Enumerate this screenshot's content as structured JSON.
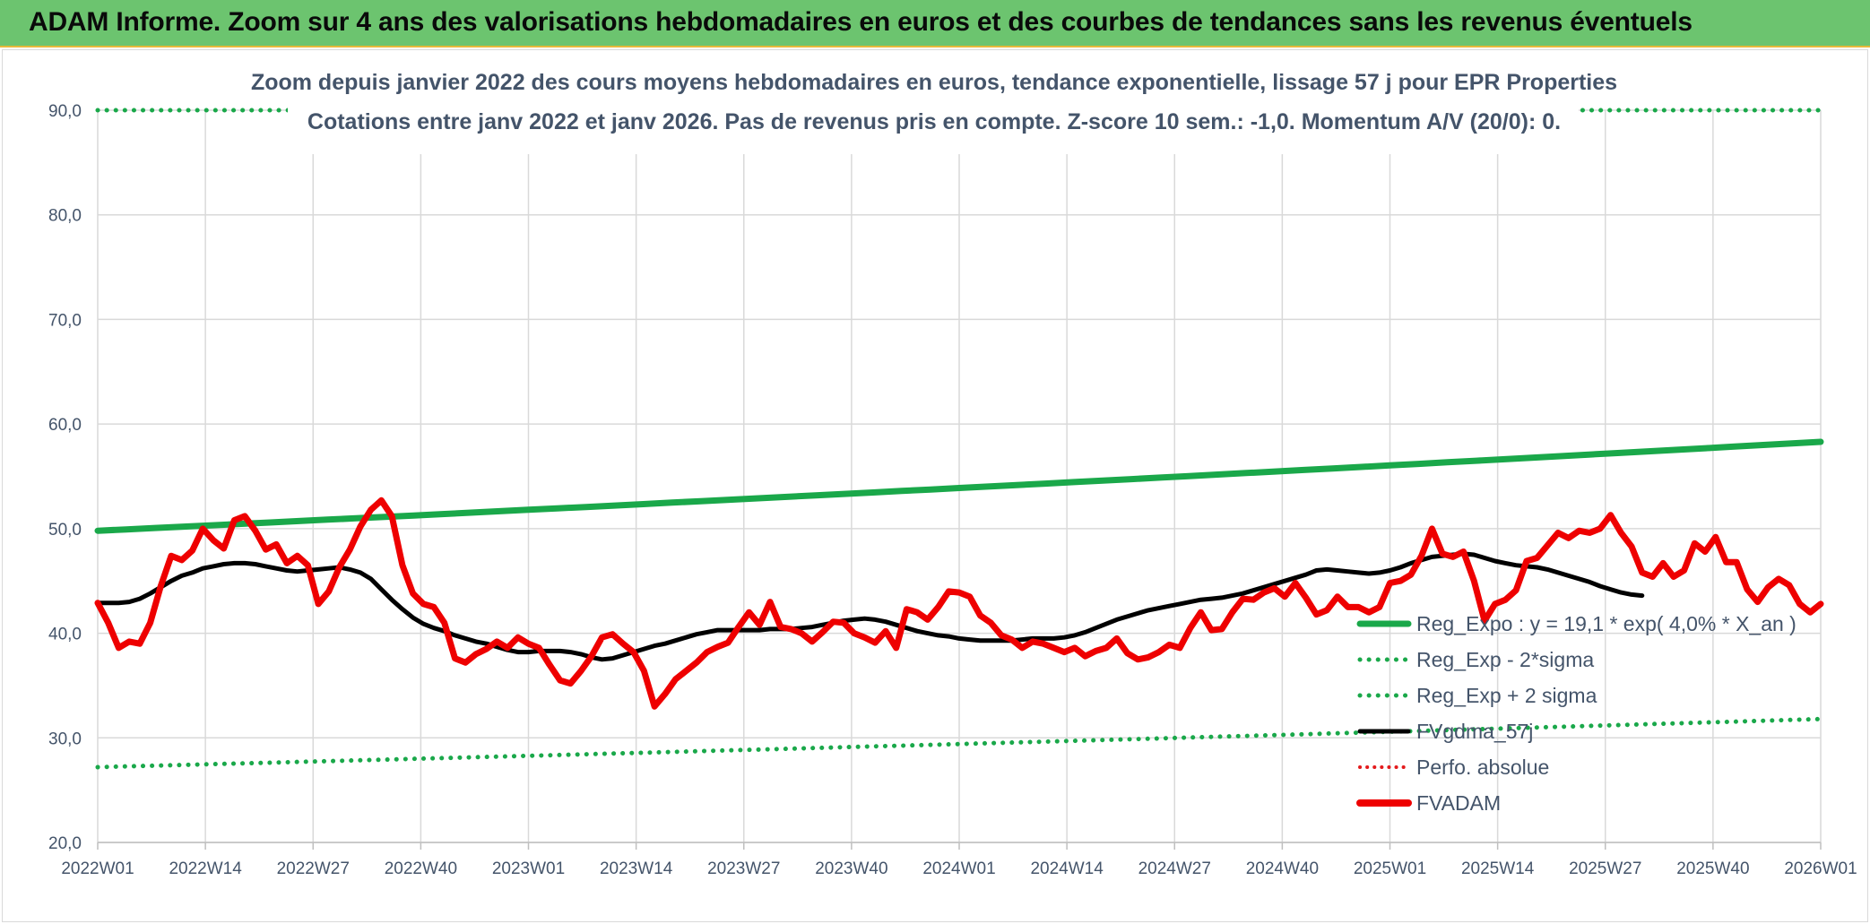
{
  "header": {
    "title": "ADAM Informe. Zoom sur 4 ans des valorisations hebdomadaires en euros et des courbes de tendances sans les revenus éventuels"
  },
  "chart_data": {
    "type": "line",
    "title_line1": "Zoom depuis janvier 2022 des cours moyens hebdomadaires en euros, tendance exponentielle, lissage 57 j pour EPR Properties",
    "title_line2": "Cotations entre janv 2022 et janv 2026. Pas de revenus pris en compte. Z-score 10 sem.: -1,0. Momentum A/V (20/0): 0.",
    "ylim": [
      20,
      90
    ],
    "y_ticks": [
      "20,0",
      "30,0",
      "40,0",
      "50,0",
      "60,0",
      "70,0",
      "80,0",
      "90,0"
    ],
    "x_ticks": [
      "2022W01",
      "2022W14",
      "2022W27",
      "2022W40",
      "2023W01",
      "2023W14",
      "2023W27",
      "2023W40",
      "2024W01",
      "2024W14",
      "2024W27",
      "2024W40",
      "2025W01",
      "2025W14",
      "2025W27",
      "2025W40",
      "2026W01"
    ],
    "grid": true,
    "legend_position": "right",
    "colors": {
      "reg_expo": "#1aa84a",
      "reg_sigma": "#1aa84a",
      "fvgdma": "#000000",
      "perfo": "#e31a1c",
      "fvadam": "#ee0000"
    },
    "series": [
      {
        "name": "Reg_Expo : y = 19,1 * exp( 4,0% *  X_an )",
        "style": "solid",
        "x_start": "2022W01",
        "x_end": "2026W01",
        "y_start": 49.8,
        "y_end": 58.3
      },
      {
        "name": "Reg_Exp - 2*sigma",
        "style": "dotted",
        "x_start": "2022W01",
        "x_end": "2026W01",
        "y_start": 27.2,
        "y_end": 31.8
      },
      {
        "name": "Reg_Exp + 2 sigma",
        "style": "dotted",
        "x_start": "2022W01",
        "x_end": "2026W01",
        "y_start": 90.0,
        "y_end": 90.0
      },
      {
        "name": "FVgdma_57j",
        "style": "solid",
        "values": [
          42.9,
          42.9,
          42.9,
          43.0,
          43.3,
          43.8,
          44.4,
          45.0,
          45.5,
          45.8,
          46.2,
          46.4,
          46.6,
          46.7,
          46.7,
          46.6,
          46.4,
          46.2,
          46.0,
          45.9,
          46.0,
          46.1,
          46.2,
          46.3,
          46.1,
          45.8,
          45.2,
          44.2,
          43.2,
          42.3,
          41.5,
          40.9,
          40.5,
          40.2,
          39.8,
          39.5,
          39.2,
          39.0,
          38.7,
          38.4,
          38.2,
          38.2,
          38.3,
          38.3,
          38.3,
          38.2,
          38.0,
          37.7,
          37.5,
          37.6,
          37.9,
          38.2,
          38.5,
          38.8,
          39.0,
          39.3,
          39.6,
          39.9,
          40.1,
          40.3,
          40.3,
          40.3,
          40.3,
          40.3,
          40.4,
          40.4,
          40.4,
          40.5,
          40.6,
          40.8,
          41.0,
          41.2,
          41.3,
          41.4,
          41.3,
          41.1,
          40.8,
          40.5,
          40.2,
          40.0,
          39.8,
          39.7,
          39.5,
          39.4,
          39.3,
          39.3,
          39.3,
          39.3,
          39.4,
          39.5,
          39.5,
          39.5,
          39.6,
          39.8,
          40.1,
          40.5,
          40.9,
          41.3,
          41.6,
          41.9,
          42.2,
          42.4,
          42.6,
          42.8,
          43.0,
          43.2,
          43.3,
          43.4,
          43.6,
          43.8,
          44.1,
          44.4,
          44.7,
          45.0,
          45.3,
          45.6,
          46.0,
          46.1,
          46.0,
          45.9,
          45.8,
          45.7,
          45.8,
          46.0,
          46.3,
          46.7,
          47.0,
          47.3,
          47.4,
          47.5,
          47.6,
          47.5,
          47.2,
          46.9,
          46.7,
          46.5,
          46.4,
          46.3,
          46.1,
          45.8,
          45.5,
          45.2,
          44.9,
          44.5,
          44.2,
          43.9,
          43.7,
          43.6
        ]
      },
      {
        "name": "Perfo. absolue",
        "style": "dotted",
        "values": []
      },
      {
        "name": "FVADAM",
        "style": "solid",
        "values": [
          42.9,
          41.0,
          38.6,
          39.2,
          39.0,
          41.0,
          44.5,
          47.4,
          47.0,
          47.9,
          50.0,
          48.9,
          48.1,
          50.8,
          51.2,
          49.8,
          48.0,
          48.5,
          46.7,
          47.4,
          46.5,
          42.8,
          44.0,
          46.3,
          48.0,
          50.2,
          51.8,
          52.7,
          51.2,
          46.5,
          43.8,
          42.8,
          42.5,
          41.0,
          37.6,
          37.2,
          38.0,
          38.5,
          39.2,
          38.6,
          39.6,
          39.0,
          38.6,
          37.0,
          35.5,
          35.2,
          36.4,
          37.8,
          39.6,
          39.9,
          39.0,
          38.2,
          36.4,
          33.0,
          34.2,
          35.6,
          36.4,
          37.2,
          38.2,
          38.7,
          39.1,
          40.6,
          42.0,
          40.8,
          43.0,
          40.6,
          40.4,
          40.0,
          39.2,
          40.1,
          41.1,
          41.0,
          40.0,
          39.6,
          39.1,
          40.2,
          38.6,
          42.3,
          42.0,
          41.3,
          42.5,
          44.0,
          43.9,
          43.5,
          41.7,
          41.0,
          39.8,
          39.4,
          38.6,
          39.2,
          39.0,
          38.6,
          38.2,
          38.6,
          37.8,
          38.3,
          38.6,
          39.5,
          38.1,
          37.5,
          37.7,
          38.2,
          38.9,
          38.6,
          40.5,
          42.0,
          40.3,
          40.4,
          42.0,
          43.3,
          43.2,
          43.9,
          44.3,
          43.5,
          44.8,
          43.4,
          41.8,
          42.2,
          43.5,
          42.5,
          42.5,
          42.0,
          42.5,
          44.8,
          45.0,
          45.6,
          47.4,
          50.0,
          47.6,
          47.3,
          47.8,
          45.0,
          41.2,
          42.8,
          43.2,
          44.1,
          46.9,
          47.2,
          48.4,
          49.6,
          49.1,
          49.8,
          49.6,
          50.0,
          51.3,
          49.6,
          48.3,
          45.8,
          45.4,
          46.7,
          45.4,
          46.0,
          48.6,
          47.8,
          49.2,
          46.8,
          46.8,
          44.2,
          43.0,
          44.4,
          45.2,
          44.6,
          42.8,
          42.0,
          42.8
        ]
      }
    ]
  }
}
